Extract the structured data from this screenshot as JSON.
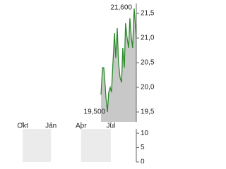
{
  "chart_data": [
    {
      "type": "area",
      "color": "#2a8a2a",
      "fill": "#c8c8c8",
      "x": [
        329,
        334,
        338,
        343,
        345,
        350,
        354,
        359,
        363,
        368,
        373,
        377,
        382,
        386,
        391,
        396,
        400,
        405,
        409,
        414,
        419,
        423,
        428,
        432,
        437,
        444
      ],
      "values": [
        19.85,
        20.4,
        20.4,
        20.0,
        19.8,
        19.5,
        19.9,
        20.0,
        19.9,
        20.5,
        21.1,
        20.6,
        21.2,
        20.5,
        20.2,
        20.1,
        20.8,
        20.4,
        21.3,
        21.0,
        20.8,
        21.4,
        21.0,
        20.8,
        21.6,
        21.0
      ],
      "xlim": [
        0,
        444
      ],
      "xticks": [
        {
          "value": 74,
          "label": "Okt"
        },
        {
          "value": 166,
          "label": "Jan"
        },
        {
          "value": 264,
          "label": "Apr"
        },
        {
          "value": 361,
          "label": "Jul"
        }
      ],
      "ylim": [
        19.3,
        21.7
      ],
      "yticks": [
        {
          "value": 19.5,
          "label": "19,5"
        },
        {
          "value": 20.0,
          "label": "20,0"
        },
        {
          "value": 20.5,
          "label": "20,5"
        },
        {
          "value": 21.0,
          "label": "21,0"
        },
        {
          "value": 21.5,
          "label": "21,5"
        }
      ],
      "annotations": [
        {
          "label": "21,600",
          "x": 437,
          "value": 21.6
        },
        {
          "label": "19,500",
          "x": 350,
          "value": 19.5
        }
      ]
    },
    {
      "type": "volume",
      "band_color": "#ebebeb",
      "xlim": [
        0,
        444
      ],
      "xticks": [
        74,
        166,
        264,
        361
      ],
      "ylim": [
        0,
        11.5
      ],
      "yticks": [
        0,
        5,
        10
      ]
    }
  ]
}
